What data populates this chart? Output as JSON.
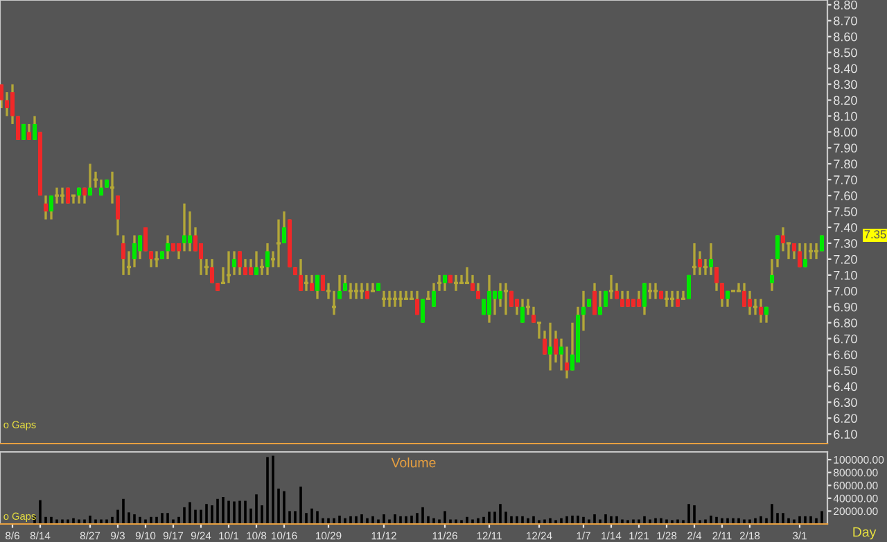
{
  "chart_data": [
    {
      "type": "candlestick",
      "categories": [
        null,
        null,
        null,
        null,
        null,
        null,
        null,
        null,
        null,
        null,
        null,
        null,
        null,
        null,
        null,
        null,
        null,
        null,
        null,
        null,
        null,
        null,
        null,
        null,
        null,
        null,
        null,
        null,
        null,
        null,
        null,
        null,
        null,
        null,
        null,
        null,
        null,
        null,
        null,
        null,
        null,
        null,
        null,
        null,
        null,
        null,
        null,
        null,
        null,
        null,
        null,
        null,
        null,
        null,
        null,
        null,
        null,
        null,
        null,
        null,
        null,
        null,
        null,
        null,
        null,
        null,
        null,
        null,
        null,
        null,
        null,
        null,
        null,
        null,
        null,
        null,
        null,
        null,
        null,
        null,
        null,
        null,
        null,
        null,
        null,
        null,
        null,
        null,
        null,
        null,
        null,
        null,
        null,
        null,
        null,
        null,
        null,
        null,
        null,
        null,
        null,
        null,
        null,
        null,
        null,
        null,
        null,
        null,
        null,
        null,
        null,
        null,
        null,
        null,
        null,
        null,
        null,
        null,
        null,
        null,
        null,
        null,
        null,
        null,
        null,
        null,
        null,
        null,
        null,
        null,
        null,
        null,
        null,
        null,
        null,
        null,
        null,
        null,
        null,
        null,
        null,
        null,
        null,
        null,
        null,
        null,
        null,
        null,
        null
      ],
      "ohlc": [
        [
          8.3,
          8.3,
          8.15,
          8.2
        ],
        [
          8.2,
          8.25,
          8.1,
          8.15
        ],
        [
          8.25,
          8.3,
          8.05,
          8.1
        ],
        [
          8.1,
          8.1,
          7.95,
          7.95
        ],
        [
          7.95,
          8.05,
          7.95,
          8.05
        ],
        [
          8.0,
          8.05,
          7.95,
          7.95
        ],
        [
          7.95,
          8.1,
          7.95,
          8.05
        ],
        [
          8.0,
          8.0,
          7.6,
          7.6
        ],
        [
          7.55,
          7.6,
          7.45,
          7.5
        ],
        [
          7.5,
          7.6,
          7.45,
          7.6
        ],
        [
          7.6,
          7.65,
          7.55,
          7.6
        ],
        [
          7.6,
          7.65,
          7.55,
          7.6
        ],
        [
          7.65,
          7.65,
          7.55,
          7.55
        ],
        [
          7.6,
          7.6,
          7.55,
          7.6
        ],
        [
          7.6,
          7.65,
          7.55,
          7.65
        ],
        [
          7.65,
          7.65,
          7.55,
          7.6
        ],
        [
          7.6,
          7.8,
          7.6,
          7.65
        ],
        [
          7.7,
          7.75,
          7.65,
          7.7
        ],
        [
          7.6,
          7.7,
          7.6,
          7.65
        ],
        [
          7.65,
          7.7,
          7.65,
          7.7
        ],
        [
          7.65,
          7.75,
          7.55,
          7.65
        ],
        [
          7.6,
          7.6,
          7.35,
          7.45
        ],
        [
          7.3,
          7.35,
          7.1,
          7.2
        ],
        [
          7.15,
          7.25,
          7.1,
          7.15
        ],
        [
          7.2,
          7.35,
          7.15,
          7.3
        ],
        [
          7.25,
          7.35,
          7.2,
          7.35
        ],
        [
          7.4,
          7.4,
          7.25,
          7.25
        ],
        [
          7.25,
          7.25,
          7.15,
          7.2
        ],
        [
          7.2,
          7.25,
          7.15,
          7.2
        ],
        [
          7.2,
          7.25,
          7.2,
          7.25
        ],
        [
          7.25,
          7.35,
          7.2,
          7.3
        ],
        [
          7.3,
          7.3,
          7.25,
          7.25
        ],
        [
          7.3,
          7.3,
          7.2,
          7.25
        ],
        [
          7.3,
          7.55,
          7.25,
          7.35
        ],
        [
          7.3,
          7.5,
          7.25,
          7.35
        ],
        [
          7.35,
          7.4,
          7.25,
          7.25
        ],
        [
          7.3,
          7.3,
          7.1,
          7.2
        ],
        [
          7.15,
          7.2,
          7.1,
          7.15
        ],
        [
          7.15,
          7.2,
          7.05,
          7.05
        ],
        [
          7.05,
          7.05,
          7.0,
          7.0
        ],
        [
          7.05,
          7.15,
          7.05,
          7.05
        ],
        [
          7.1,
          7.25,
          7.05,
          7.1
        ],
        [
          7.15,
          7.25,
          7.1,
          7.2
        ],
        [
          7.25,
          7.25,
          7.1,
          7.15
        ],
        [
          7.15,
          7.2,
          7.1,
          7.1
        ],
        [
          7.15,
          7.2,
          7.1,
          7.1
        ],
        [
          7.1,
          7.25,
          7.1,
          7.15
        ],
        [
          7.15,
          7.2,
          7.1,
          7.15
        ],
        [
          7.15,
          7.3,
          7.1,
          7.25
        ],
        [
          7.2,
          7.25,
          7.15,
          7.2
        ],
        [
          7.3,
          7.45,
          7.15,
          7.3
        ],
        [
          7.3,
          7.5,
          7.3,
          7.4
        ],
        [
          7.45,
          7.45,
          7.15,
          7.15
        ],
        [
          7.15,
          7.15,
          7.1,
          7.1
        ],
        [
          7.1,
          7.2,
          7.0,
          7.0
        ],
        [
          7.05,
          7.1,
          7.0,
          7.05
        ],
        [
          7.05,
          7.1,
          7.0,
          7.0
        ],
        [
          7.0,
          7.1,
          6.95,
          7.1
        ],
        [
          7.1,
          7.1,
          7.0,
          7.0
        ],
        [
          7.0,
          7.05,
          6.95,
          7.0
        ],
        [
          6.9,
          7.0,
          6.85,
          6.9
        ],
        [
          6.95,
          7.1,
          6.95,
          7.0
        ],
        [
          7.0,
          7.1,
          7.0,
          7.05
        ],
        [
          7.0,
          7.05,
          6.95,
          7.0
        ],
        [
          7.0,
          7.05,
          6.95,
          7.0
        ],
        [
          7.0,
          7.05,
          6.95,
          7.0
        ],
        [
          7.0,
          7.05,
          6.95,
          6.95
        ],
        [
          7.0,
          7.05,
          7.0,
          7.0
        ],
        [
          7.0,
          7.05,
          7.0,
          7.05
        ],
        [
          6.95,
          7.0,
          6.9,
          6.95
        ],
        [
          6.95,
          7.0,
          6.9,
          6.95
        ],
        [
          6.95,
          7.0,
          6.9,
          6.95
        ],
        [
          6.95,
          7.0,
          6.9,
          6.95
        ],
        [
          6.95,
          7.0,
          6.95,
          6.95
        ],
        [
          6.95,
          7.0,
          6.95,
          6.95
        ],
        [
          6.95,
          7.0,
          6.85,
          6.85
        ],
        [
          6.8,
          6.95,
          6.8,
          6.95
        ],
        [
          6.95,
          7.0,
          6.95,
          6.95
        ],
        [
          6.9,
          7.05,
          6.9,
          7.0
        ],
        [
          7.05,
          7.1,
          7.0,
          7.05
        ],
        [
          7.05,
          7.1,
          7.0,
          7.1
        ],
        [
          7.1,
          7.1,
          7.05,
          7.05
        ],
        [
          7.05,
          7.1,
          7.0,
          7.05
        ],
        [
          7.05,
          7.1,
          7.05,
          7.05
        ],
        [
          7.05,
          7.15,
          7.05,
          7.05
        ],
        [
          7.05,
          7.1,
          7.0,
          7.0
        ],
        [
          7.0,
          7.05,
          6.95,
          6.95
        ],
        [
          6.85,
          6.95,
          6.85,
          6.95
        ],
        [
          6.85,
          7.1,
          6.8,
          7.0
        ],
        [
          6.95,
          7.0,
          6.85,
          7.0
        ],
        [
          6.95,
          7.05,
          6.9,
          7.0
        ],
        [
          7.0,
          7.05,
          6.85,
          7.0
        ],
        [
          7.0,
          7.0,
          6.9,
          6.9
        ],
        [
          6.95,
          6.95,
          6.85,
          6.9
        ],
        [
          6.8,
          6.95,
          6.8,
          6.9
        ],
        [
          6.9,
          6.95,
          6.85,
          6.9
        ],
        [
          6.85,
          6.9,
          6.8,
          6.8
        ],
        [
          6.8,
          6.8,
          6.7,
          6.8
        ],
        [
          6.7,
          6.75,
          6.6,
          6.6
        ],
        [
          6.6,
          6.8,
          6.5,
          6.65
        ],
        [
          6.7,
          6.75,
          6.55,
          6.6
        ],
        [
          6.6,
          6.7,
          6.5,
          6.65
        ],
        [
          6.55,
          6.65,
          6.45,
          6.5
        ],
        [
          6.5,
          6.8,
          6.5,
          6.6
        ],
        [
          6.55,
          6.9,
          6.55,
          6.85
        ],
        [
          6.85,
          7.0,
          6.75,
          6.9
        ],
        [
          6.9,
          6.95,
          6.9,
          6.95
        ],
        [
          7.0,
          7.05,
          6.85,
          6.85
        ],
        [
          6.85,
          7.0,
          6.85,
          6.9
        ],
        [
          6.9,
          7.0,
          6.9,
          7.0
        ],
        [
          7.0,
          7.1,
          6.95,
          7.0
        ],
        [
          7.0,
          7.05,
          6.95,
          6.95
        ],
        [
          6.95,
          7.0,
          6.9,
          6.9
        ],
        [
          6.95,
          7.0,
          6.9,
          6.9
        ],
        [
          6.95,
          6.95,
          6.9,
          6.9
        ],
        [
          6.95,
          7.0,
          6.9,
          6.9
        ],
        [
          6.9,
          7.05,
          6.85,
          7.05
        ],
        [
          7.0,
          7.05,
          6.95,
          7.0
        ],
        [
          7.0,
          7.05,
          6.95,
          7.0
        ],
        [
          7.0,
          7.0,
          6.95,
          6.95
        ],
        [
          6.95,
          7.0,
          6.9,
          6.95
        ],
        [
          6.95,
          7.0,
          6.9,
          6.95
        ],
        [
          6.95,
          7.0,
          6.9,
          6.9
        ],
        [
          6.95,
          7.0,
          6.95,
          6.95
        ],
        [
          6.95,
          7.1,
          6.95,
          7.1
        ],
        [
          7.15,
          7.3,
          7.1,
          7.15
        ],
        [
          7.2,
          7.25,
          7.1,
          7.15
        ],
        [
          7.15,
          7.2,
          7.1,
          7.15
        ],
        [
          7.15,
          7.3,
          7.1,
          7.2
        ],
        [
          7.15,
          7.15,
          7.0,
          7.05
        ],
        [
          7.05,
          7.05,
          6.9,
          6.95
        ],
        [
          6.95,
          7.0,
          6.9,
          7.0
        ],
        [
          7.0,
          7.0,
          7.0,
          7.0
        ],
        [
          7.0,
          7.05,
          7.0,
          7.0
        ],
        [
          7.0,
          7.05,
          6.9,
          6.9
        ],
        [
          6.95,
          7.0,
          6.85,
          6.9
        ],
        [
          6.9,
          6.95,
          6.85,
          6.9
        ],
        [
          6.9,
          6.95,
          6.8,
          6.85
        ],
        [
          6.85,
          6.9,
          6.8,
          6.9
        ],
        [
          7.05,
          7.2,
          7.0,
          7.1
        ],
        [
          7.2,
          7.35,
          7.15,
          7.35
        ],
        [
          7.35,
          7.4,
          7.25,
          7.3
        ],
        [
          7.3,
          7.3,
          7.2,
          7.3
        ],
        [
          7.3,
          7.3,
          7.2,
          7.25
        ],
        [
          7.25,
          7.3,
          7.15,
          7.15
        ],
        [
          7.15,
          7.3,
          7.15,
          7.2
        ],
        [
          7.25,
          7.3,
          7.2,
          7.25
        ],
        [
          7.25,
          7.3,
          7.2,
          7.25
        ],
        [
          7.25,
          7.35,
          7.25,
          7.35
        ]
      ],
      "colors": [
        "#f02828",
        "#f02828",
        "#f02828",
        "#f02828",
        "#00e800",
        "#f02828",
        "#00e800",
        "#f02828",
        "#f02828",
        "#00e800",
        "#b4a838",
        "#b4a838",
        "#f02828",
        "#b4a838",
        "#00e800",
        "#f02828",
        "#00e800",
        "#b4a838",
        "#00e800",
        "#00e800",
        "#b4a838",
        "#f02828",
        "#f02828",
        "#b4a838",
        "#00e800",
        "#00e800",
        "#f02828",
        "#f02828",
        "#b4a838",
        "#00e800",
        "#00e800",
        "#f02828",
        "#f02828",
        "#00e800",
        "#00e800",
        "#f02828",
        "#f02828",
        "#b4a838",
        "#f02828",
        "#f02828",
        "#b4a838",
        "#b4a838",
        "#00e800",
        "#f02828",
        "#f02828",
        "#f02828",
        "#00e800",
        "#b4a838",
        "#00e800",
        "#b4a838",
        "#b4a838",
        "#00e800",
        "#f02828",
        "#f02828",
        "#f02828",
        "#b4a838",
        "#f02828",
        "#00e800",
        "#f02828",
        "#b4a838",
        "#b4a838",
        "#00e800",
        "#00e800",
        "#b4a838",
        "#b4a838",
        "#b4a838",
        "#f02828",
        "#b4a838",
        "#00e800",
        "#b4a838",
        "#b4a838",
        "#b4a838",
        "#b4a838",
        "#b4a838",
        "#b4a838",
        "#f02828",
        "#00e800",
        "#b4a838",
        "#00e800",
        "#b4a838",
        "#00e800",
        "#f02828",
        "#b4a838",
        "#b4a838",
        "#b4a838",
        "#f02828",
        "#f02828",
        "#00e800",
        "#00e800",
        "#00e800",
        "#00e800",
        "#b4a838",
        "#f02828",
        "#f02828",
        "#00e800",
        "#b4a838",
        "#f02828",
        "#b4a838",
        "#f02828",
        "#00e800",
        "#f02828",
        "#00e800",
        "#f02828",
        "#00e800",
        "#00e800",
        "#00e800",
        "#00e800",
        "#f02828",
        "#00e800",
        "#00e800",
        "#b4a838",
        "#f02828",
        "#f02828",
        "#f02828",
        "#f02828",
        "#f02828",
        "#00e800",
        "#b4a838",
        "#b4a838",
        "#f02828",
        "#b4a838",
        "#b4a838",
        "#f02828",
        "#b4a838",
        "#00e800",
        "#b4a838",
        "#f02828",
        "#b4a838",
        "#00e800",
        "#f02828",
        "#f02828",
        "#00e800",
        "#b4a838",
        "#b4a838",
        "#f02828",
        "#f02828",
        "#b4a838",
        "#f02828",
        "#00e800",
        "#00e800",
        "#00e800",
        "#f02828",
        "#b4a838",
        "#f02828",
        "#f02828",
        "#00e800",
        "#b4a838",
        "#b4a838",
        "#00e800"
      ],
      "color": "#b4a838",
      "ylim": [
        6.04,
        8.83
      ],
      "yticks": [
        {
          "value": 6.1,
          "label": "6.10"
        },
        {
          "value": 6.2,
          "label": "6.20"
        },
        {
          "value": 6.3,
          "label": "6.30"
        },
        {
          "value": 6.4,
          "label": "6.40"
        },
        {
          "value": 6.5,
          "label": "6.50"
        },
        {
          "value": 6.6,
          "label": "6.60"
        },
        {
          "value": 6.7,
          "label": "6.70"
        },
        {
          "value": 6.8,
          "label": "6.80"
        },
        {
          "value": 6.9,
          "label": "6.90"
        },
        {
          "value": 7.0,
          "label": "7.00"
        },
        {
          "value": 7.1,
          "label": "7.10"
        },
        {
          "value": 7.2,
          "label": "7.20"
        },
        {
          "value": 7.3,
          "label": "7.30"
        },
        {
          "value": 7.4,
          "label": "7.40"
        },
        {
          "value": 7.5,
          "label": "7.50"
        },
        {
          "value": 7.6,
          "label": "7.60"
        },
        {
          "value": 7.7,
          "label": "7.70"
        },
        {
          "value": 7.8,
          "label": "7.80"
        },
        {
          "value": 7.9,
          "label": "7.90"
        },
        {
          "value": 8.0,
          "label": "8.00"
        },
        {
          "value": 8.1,
          "label": "8.10"
        },
        {
          "value": 8.2,
          "label": "8.20"
        },
        {
          "value": 8.3,
          "label": "8.30"
        },
        {
          "value": 8.4,
          "label": "8.40"
        },
        {
          "value": 8.5,
          "label": "8.50"
        },
        {
          "value": 8.6,
          "label": "8.60"
        },
        {
          "value": 8.7,
          "label": "8.70"
        },
        {
          "value": 8.8,
          "label": "8.80"
        }
      ],
      "tick_labels": "y",
      "annotations": [
        "7.35",
        "o Gaps"
      ]
    },
    {
      "type": "bar",
      "title": "Volume",
      "xlabel": "Day",
      "categories": [
        null,
        null,
        "8/6",
        null,
        null,
        null,
        null,
        "8/14",
        null,
        null,
        null,
        null,
        null,
        null,
        null,
        null,
        "8/27",
        null,
        null,
        null,
        null,
        "9/3",
        null,
        null,
        null,
        null,
        "9/10",
        null,
        null,
        null,
        null,
        "9/17",
        null,
        null,
        null,
        null,
        "9/24",
        null,
        null,
        null,
        null,
        "10/1",
        null,
        null,
        null,
        null,
        "10/8",
        null,
        null,
        null,
        null,
        "10/16",
        null,
        null,
        null,
        null,
        null,
        null,
        null,
        "10/29",
        null,
        null,
        null,
        null,
        null,
        null,
        null,
        null,
        null,
        "11/12",
        null,
        null,
        null,
        null,
        null,
        null,
        null,
        null,
        null,
        null,
        "11/26",
        null,
        null,
        null,
        null,
        null,
        null,
        null,
        "12/11",
        null,
        null,
        null,
        null,
        null,
        null,
        null,
        null,
        "12/24",
        null,
        null,
        null,
        null,
        null,
        null,
        null,
        "1/7",
        null,
        null,
        null,
        null,
        "1/14",
        null,
        null,
        null,
        null,
        "1/21",
        null,
        null,
        null,
        null,
        "1/28",
        null,
        null,
        null,
        null,
        "2/4",
        null,
        null,
        null,
        null,
        "2/11",
        null,
        null,
        null,
        null,
        "2/18",
        null,
        null,
        null,
        null,
        null,
        null,
        null,
        null,
        "3/1",
        null,
        null,
        null,
        null
      ],
      "values": [
        null,
        null,
        null,
        null,
        null,
        null,
        13000,
        37000,
        11000,
        11000,
        7000,
        7000,
        7000,
        9000,
        7000,
        7000,
        13000,
        7000,
        7000,
        7000,
        11000,
        22000,
        39000,
        18000,
        15000,
        11000,
        7000,
        11000,
        11000,
        17000,
        17000,
        7000,
        11000,
        26000,
        34000,
        22000,
        22000,
        31000,
        29000,
        39000,
        42000,
        36000,
        35000,
        36000,
        36000,
        24000,
        46000,
        29000,
        104000,
        106000,
        55000,
        51000,
        20000,
        20000,
        58000,
        17000,
        24000,
        20000,
        9000,
        9000,
        9000,
        13000,
        9000,
        12000,
        12000,
        15000,
        9000,
        12000,
        7000,
        15000,
        7000,
        15000,
        12000,
        12000,
        13000,
        17000,
        26000,
        12000,
        9000,
        7000,
        20000,
        7000,
        7000,
        6000,
        11000,
        7000,
        9000,
        11000,
        19000,
        19000,
        31000,
        19000,
        12000,
        12000,
        12000,
        9000,
        12000,
        6000,
        7000,
        9000,
        6000,
        9000,
        12000,
        13000,
        13000,
        11000,
        7000,
        15000,
        7000,
        15000,
        12000,
        12000,
        7000,
        6000,
        7000,
        7000,
        12000,
        7000,
        9000,
        9000,
        7000,
        6000,
        7000,
        6000,
        31000,
        29000,
        6000,
        7000,
        13000,
        11000,
        9000,
        9000,
        9000,
        9000,
        7000,
        7000,
        9000,
        12000,
        9000,
        31000,
        17000,
        17000,
        9000,
        7000,
        12000,
        12000,
        12000,
        9000,
        20000
      ],
      "color": "#000000",
      "ylim": [
        0,
        112000
      ],
      "yticks": [
        {
          "value": 20000,
          "label": "20000.00"
        },
        {
          "value": 40000,
          "label": "40000.00"
        },
        {
          "value": 60000,
          "label": "60000.00"
        },
        {
          "value": 80000,
          "label": "80000.00"
        },
        {
          "value": 100000,
          "label": "100000.00"
        }
      ],
      "annotations": [
        "o Gaps"
      ]
    }
  ]
}
